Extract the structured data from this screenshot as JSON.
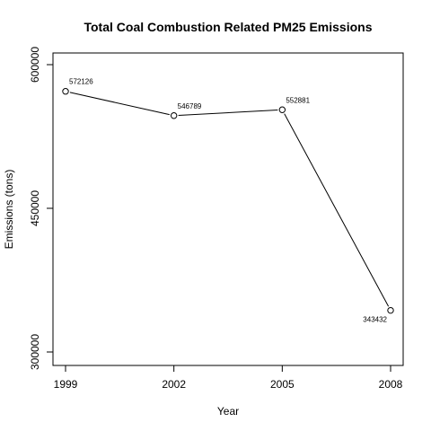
{
  "chart_data": {
    "type": "line",
    "title": "Total Coal Combustion Related PM25 Emissions",
    "xlabel": "Year",
    "ylabel": "Emissions (tons)",
    "x": [
      1999,
      2002,
      2005,
      2008
    ],
    "series": [
      {
        "values": [
          572126,
          546789,
          552881,
          343432
        ],
        "data_labels": [
          "572126",
          "546789",
          "552881",
          "343432"
        ]
      }
    ],
    "x_ticks": [
      1999,
      2002,
      2005,
      2008
    ],
    "y_ticks": [
      300000,
      450000,
      600000
    ],
    "y_tick_labels": [
      "300000",
      "450000",
      "600000"
    ],
    "xlim": [
      1999,
      2008
    ],
    "ylim": [
      300000,
      600000
    ],
    "grid": false,
    "markers": "open-circle",
    "colors": {
      "line": "#000000",
      "marker_fill": "#ffffff",
      "background": "#ffffff"
    }
  }
}
